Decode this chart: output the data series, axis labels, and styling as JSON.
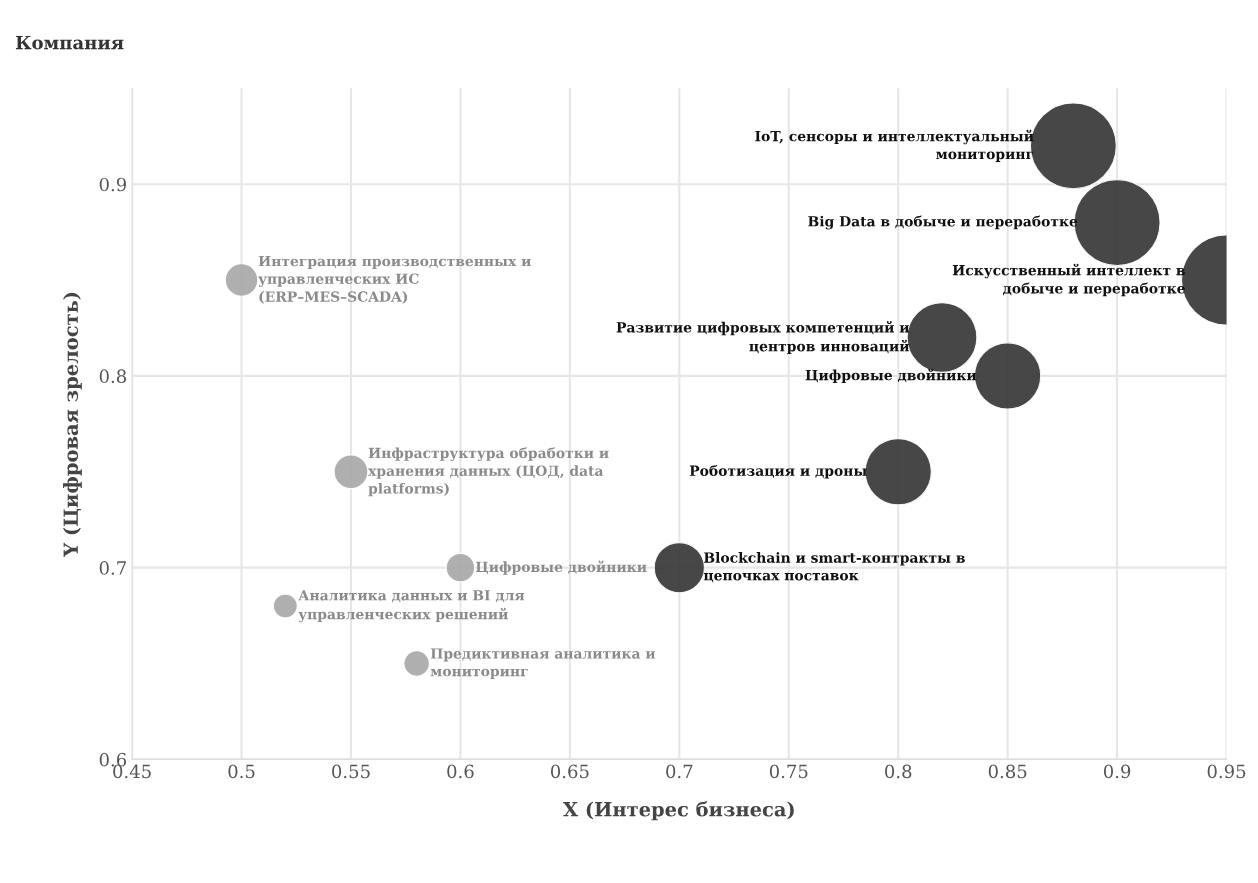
{
  "chart_data": {
    "type": "bubble",
    "xlabel": "X (Интерес бизнеса)",
    "ylabel": "Y (Цифровая зрелость)",
    "legend_title": "Компания",
    "xlim": [
      0.45,
      0.95
    ],
    "xticks": [
      0.45,
      0.5,
      0.55,
      0.6,
      0.65,
      0.7,
      0.75,
      0.8,
      0.85,
      0.9,
      0.95
    ],
    "ylim": [
      0.6,
      0.95
    ],
    "yticks": [
      0.6,
      0.7,
      0.8,
      0.9
    ],
    "grid": true,
    "series": [
      {
        "color": "#333333",
        "x": [
          0.88,
          0.9,
          0.95,
          0.82,
          0.85,
          0.8,
          0.7
        ],
        "values": [
          0.92,
          0.88,
          0.85,
          0.82,
          0.8,
          0.75,
          0.7
        ],
        "sizes": [
          0.91,
          0.91,
          1,
          0.6,
          0.54,
          0.54,
          0.31
        ]
      },
      {
        "color": "#a6a6a6",
        "x": [
          0.5,
          0.55,
          0.6,
          0.52,
          0.58
        ],
        "values": [
          0.85,
          0.75,
          0.7,
          0.68,
          0.65
        ],
        "sizes": [
          0.13,
          0.14,
          0.1,
          0.07,
          0.08
        ]
      }
    ],
    "annotations": [
      {
        "text": "IoT, сенсоры и интеллектуальный\nмониторинг",
        "x": 0.88,
        "y": 0.92
      },
      {
        "text": "Big Data в добыче и переработке",
        "x": 0.9,
        "y": 0.88
      },
      {
        "text": "Искусственный интеллект в\nдобыче и переработке",
        "x": 0.95,
        "y": 0.85
      },
      {
        "text": "Развитие цифровых компетенций и\nцентров инноваций",
        "x": 0.82,
        "y": 0.82
      },
      {
        "text": "Цифровые двойники",
        "x": 0.85,
        "y": 0.8
      },
      {
        "text": "Роботизация и дроны",
        "x": 0.8,
        "y": 0.75
      },
      {
        "text": "Blockchain и smart-контракты в\nцепочках поставок",
        "x": 0.7,
        "y": 0.7
      },
      {
        "text": "Интеграция производственных и\nуправленческих ИС\n(ERP–MES–SCADA)",
        "x": 0.5,
        "y": 0.85
      },
      {
        "text": "Инфраструктура обработки и\nхранения данных (ЦОД, data\nplatforms)",
        "x": 0.55,
        "y": 0.75
      },
      {
        "text": "Цифровые двойники",
        "x": 0.6,
        "y": 0.7
      },
      {
        "text": "Аналитика данных и BI для\nуправленческих решений",
        "x": 0.52,
        "y": 0.68
      },
      {
        "text": "Предиктивная аналитика и\nмониторинг",
        "x": 0.58,
        "y": 0.65
      }
    ]
  }
}
